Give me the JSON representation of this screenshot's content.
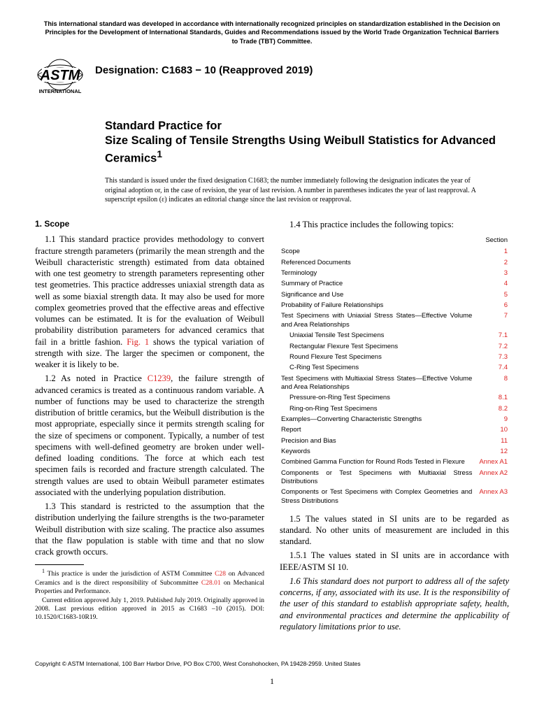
{
  "header_note": "This international standard was developed in accordance with internationally recognized principles on standardization established in the Decision on Principles for the Development of International Standards, Guides and Recommendations issued by the World Trade Organization Technical Barriers to Trade (TBT) Committee.",
  "logo": {
    "top_text": "ASTM",
    "bottom_text": "INTERNATIONAL",
    "fill": "#000000"
  },
  "designation": "Designation: C1683 − 10 (Reapproved 2019)",
  "title_prefix": "Standard Practice for",
  "title_main": "Size Scaling of Tensile Strengths Using Weibull Statistics for Advanced Ceramics",
  "title_super": "1",
  "issuance_note": "This standard is issued under the fixed designation C1683; the number immediately following the designation indicates the year of original adoption or, in the case of revision, the year of last revision. A number in parentheses indicates the year of last reapproval. A superscript epsilon (ε) indicates an editorial change since the last revision or reapproval.",
  "scope_heading": "1. Scope",
  "para_1_1_a": "1.1 This standard practice provides methodology to convert fracture strength parameters (primarily the mean strength and the Weibull characteristic strength) estimated from data obtained with one test geometry to strength parameters representing other test geometries. This practice addresses uniaxial strength data as well as some biaxial strength data. It may also be used for more complex geometries proved that the effective areas and effective volumes can be estimated. It is for the evaluation of Weibull probability distribution parameters for advanced ceramics that fail in a brittle fashion. ",
  "fig1_link": "Fig. 1",
  "para_1_1_b": " shows the typical variation of strength with size. The larger the specimen or component, the weaker it is likely to be.",
  "para_1_2_a": "1.2 As noted in Practice ",
  "c1239_link": "C1239",
  "para_1_2_b": ", the failure strength of advanced ceramics is treated as a continuous random variable. A number of functions may be used to characterize the strength distribution of brittle ceramics, but the Weibull distribution is the most appropriate, especially since it permits strength scaling for the size of specimens or component. Typically, a number of test specimens with well-defined geometry are broken under well-defined loading conditions. The force at which each test specimen fails is recorded and fracture strength calculated. The strength values are used to obtain Weibull parameter estimates associated with the underlying population distribution.",
  "para_1_3": "1.3 This standard is restricted to the assumption that the distribution underlying the failure strengths is the two-parameter Weibull distribution with size scaling. The practice also assumes that the flaw population is stable with time and that no slow crack growth occurs.",
  "para_1_4": "1.4 This practice includes the following topics:",
  "topics_header": "Section",
  "topics": [
    {
      "label": "Scope",
      "sec": "1",
      "indent": 0
    },
    {
      "label": "Referenced Documents",
      "sec": "2",
      "indent": 0
    },
    {
      "label": "Terminology",
      "sec": "3",
      "indent": 0
    },
    {
      "label": "Summary of Practice",
      "sec": "4",
      "indent": 0
    },
    {
      "label": "Significance and Use",
      "sec": "5",
      "indent": 0
    },
    {
      "label": "Probability of Failure Relationships",
      "sec": "6",
      "indent": 0
    },
    {
      "label": "Test Specimens with Uniaxial Stress States—Effective Volume and Area Relationships",
      "sec": "7",
      "indent": 0
    },
    {
      "label": "Uniaxial Tensile Test Specimens",
      "sec": "7.1",
      "indent": 1
    },
    {
      "label": "Rectangular Flexure Test Specimens",
      "sec": "7.2",
      "indent": 1
    },
    {
      "label": "Round Flexure Test Specimens",
      "sec": "7.3",
      "indent": 1
    },
    {
      "label": "C-Ring Test Specimens",
      "sec": "7.4",
      "indent": 1
    },
    {
      "label": "Test Specimens with Multiaxial Stress States—Effective Volume and Area Relationships",
      "sec": "8",
      "indent": 0
    },
    {
      "label": "Pressure-on-Ring Test Specimens",
      "sec": "8.1",
      "indent": 1
    },
    {
      "label": "Ring-on-Ring Test Specimens",
      "sec": "8.2",
      "indent": 1
    },
    {
      "label": "Examples—Converting Characteristic Strengths",
      "sec": "9",
      "indent": 0
    },
    {
      "label": "Report",
      "sec": "10",
      "indent": 0
    },
    {
      "label": "Precision and Bias",
      "sec": "11",
      "indent": 0
    },
    {
      "label": "Keywords",
      "sec": "12",
      "indent": 0
    },
    {
      "label": "Combined Gamma Function for Round Rods Tested in Flexure",
      "sec": "Annex A1",
      "indent": 0
    },
    {
      "label": "Components or Test Specimens with Multiaxial Stress Distributions",
      "sec": "Annex A2",
      "indent": 0
    },
    {
      "label": "Components or Test Specimens with Complex Geometries and Stress Distributions",
      "sec": "Annex A3",
      "indent": 0
    }
  ],
  "para_1_5": "1.5 The values stated in SI units are to be regarded as standard. No other units of measurement are included in this standard.",
  "para_1_5_1": "1.5.1 The values stated in SI units are in accordance with IEEE/ASTM SI 10.",
  "para_1_6": "1.6 This standard does not purport to address all of the safety concerns, if any, associated with its use. It is the responsibility of the user of this standard to establish appropriate safety, health, and environmental practices and determine the applicability of regulatory limitations prior to use.",
  "footnote_a": " This practice is under the jurisdiction of ASTM Committee ",
  "footnote_link1": "C28",
  "footnote_b": " on Advanced Ceramics and is the direct responsibility of Subcommittee ",
  "footnote_link2": "C28.01",
  "footnote_c": " on Mechanical Properties and Performance.",
  "footnote_d": "Current edition approved July 1, 2019. Published July 2019. Originally approved in 2008. Last previous edition approved in 2015 as C1683 –10 (2015). DOI: 10.1520/C1683-10R19.",
  "copyright": "Copyright © ASTM International, 100 Barr Harbor Drive, PO Box C700, West Conshohocken, PA 19428-2959. United States",
  "page_number": "1",
  "colors": {
    "link": "#dd2222",
    "text": "#000000",
    "bg": "#ffffff"
  }
}
